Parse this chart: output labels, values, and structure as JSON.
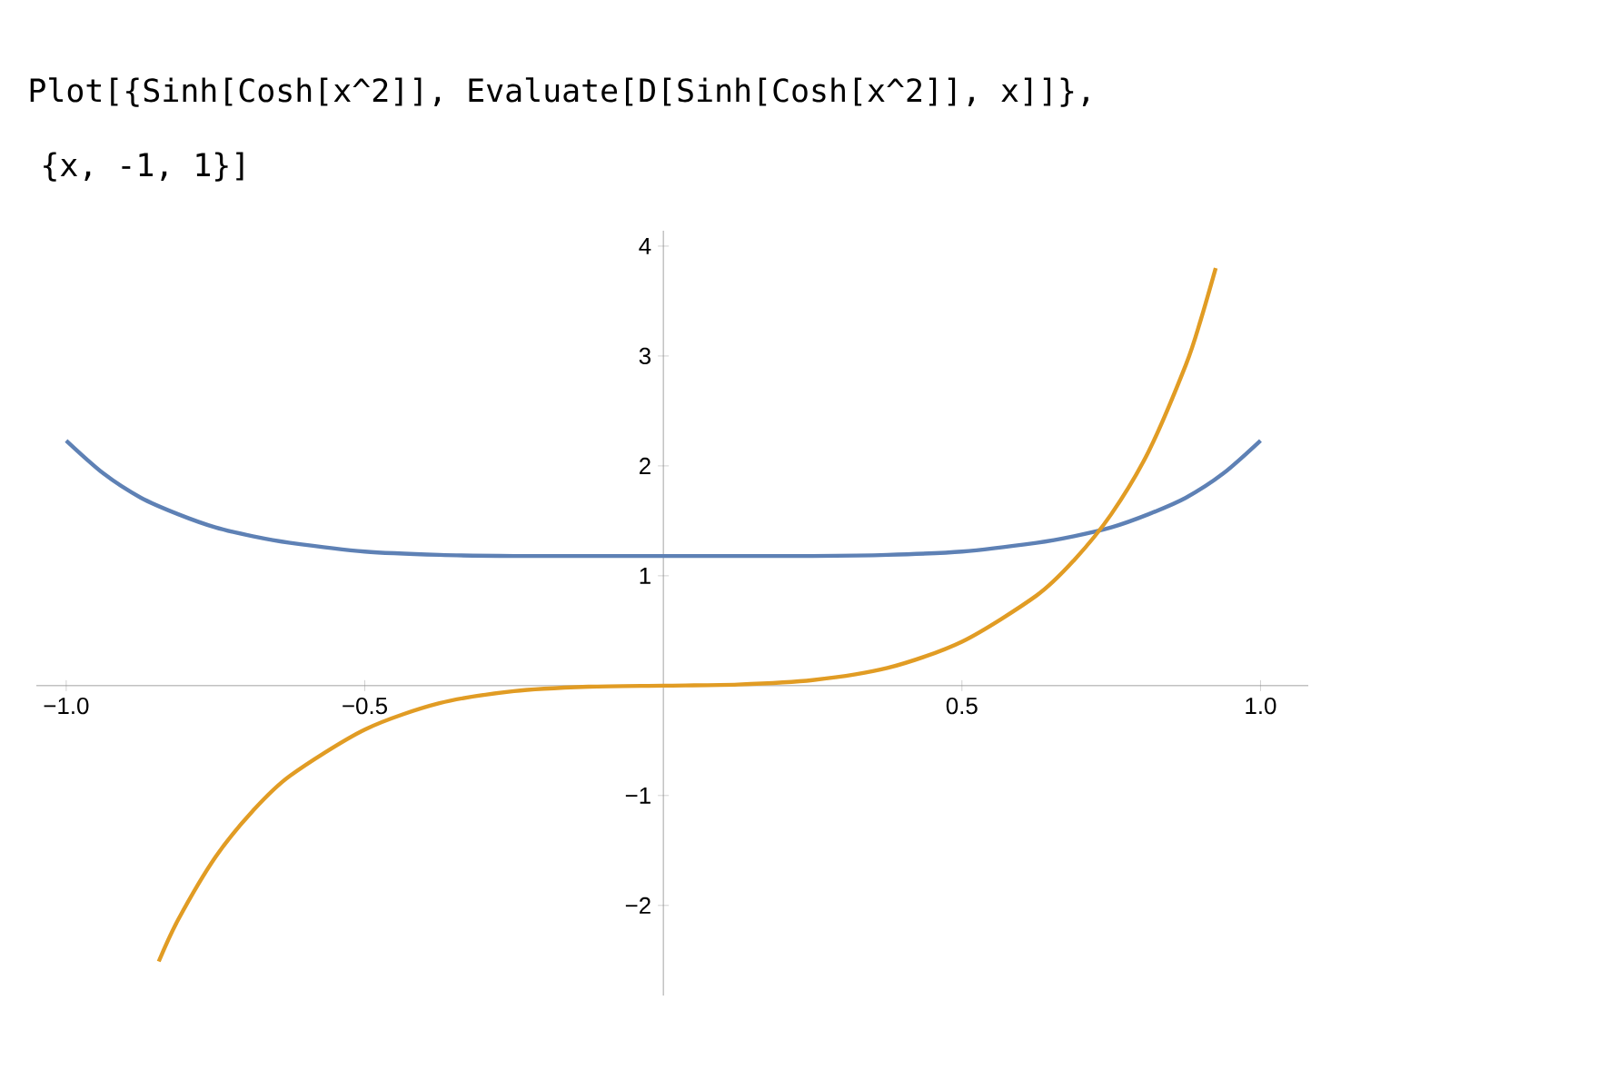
{
  "chart_data": {
    "type": "line",
    "title": "Plot[{Sinh[Cosh[x^2]], Evaluate[D[Sinh[Cosh[x^2]], x]]},",
    "subtitle": "{x, -1, 1}]",
    "series": [
      {
        "color": "#5e81b5",
        "x": [
          -1,
          -0.9375,
          -0.875,
          -0.8125,
          -0.75,
          -0.6875,
          -0.625,
          -0.5,
          -0.375,
          -0.25,
          -0.125,
          0,
          0.125,
          0.25,
          0.375,
          0.5,
          0.625,
          0.6875,
          0.75,
          0.8125,
          0.875,
          0.9375,
          1
        ],
        "values": [
          2.23,
          1.93,
          1.71,
          1.56,
          1.44,
          1.36,
          1.3,
          1.22,
          1.19,
          1.18,
          1.18,
          1.18,
          1.18,
          1.18,
          1.19,
          1.22,
          1.3,
          1.36,
          1.44,
          1.56,
          1.71,
          1.93,
          2.23
        ]
      },
      {
        "color": "#e19c24",
        "x": [
          -0.845,
          -0.8125,
          -0.75,
          -0.6875,
          -0.625,
          -0.5,
          -0.375,
          -0.25,
          -0.125,
          0,
          0.125,
          0.25,
          0.375,
          0.5,
          0.625,
          0.6875,
          0.75,
          0.8125,
          0.875,
          0.9,
          0.925
        ],
        "values": [
          -2.51,
          -2.13,
          -1.56,
          -1.14,
          -0.82,
          -0.4,
          -0.16,
          -0.05,
          -0.01,
          0,
          0.01,
          0.05,
          0.16,
          0.4,
          0.82,
          1.14,
          1.56,
          2.13,
          2.92,
          3.33,
          3.8
        ]
      }
    ],
    "xlim": [
      -1.05,
      1.08
    ],
    "ylim": [
      -2.82,
      4.14
    ],
    "xticks": [
      {
        "value": -1,
        "label": "−1.0"
      },
      {
        "value": -0.5,
        "label": "−0.5"
      },
      0.5,
      {
        "value": 1,
        "label": "1.0"
      }
    ],
    "yticks": [
      {
        "value": -2,
        "label": "−2"
      },
      {
        "value": -1,
        "label": "−1"
      },
      1,
      2,
      3,
      4
    ],
    "grid": false,
    "marker": "none"
  }
}
